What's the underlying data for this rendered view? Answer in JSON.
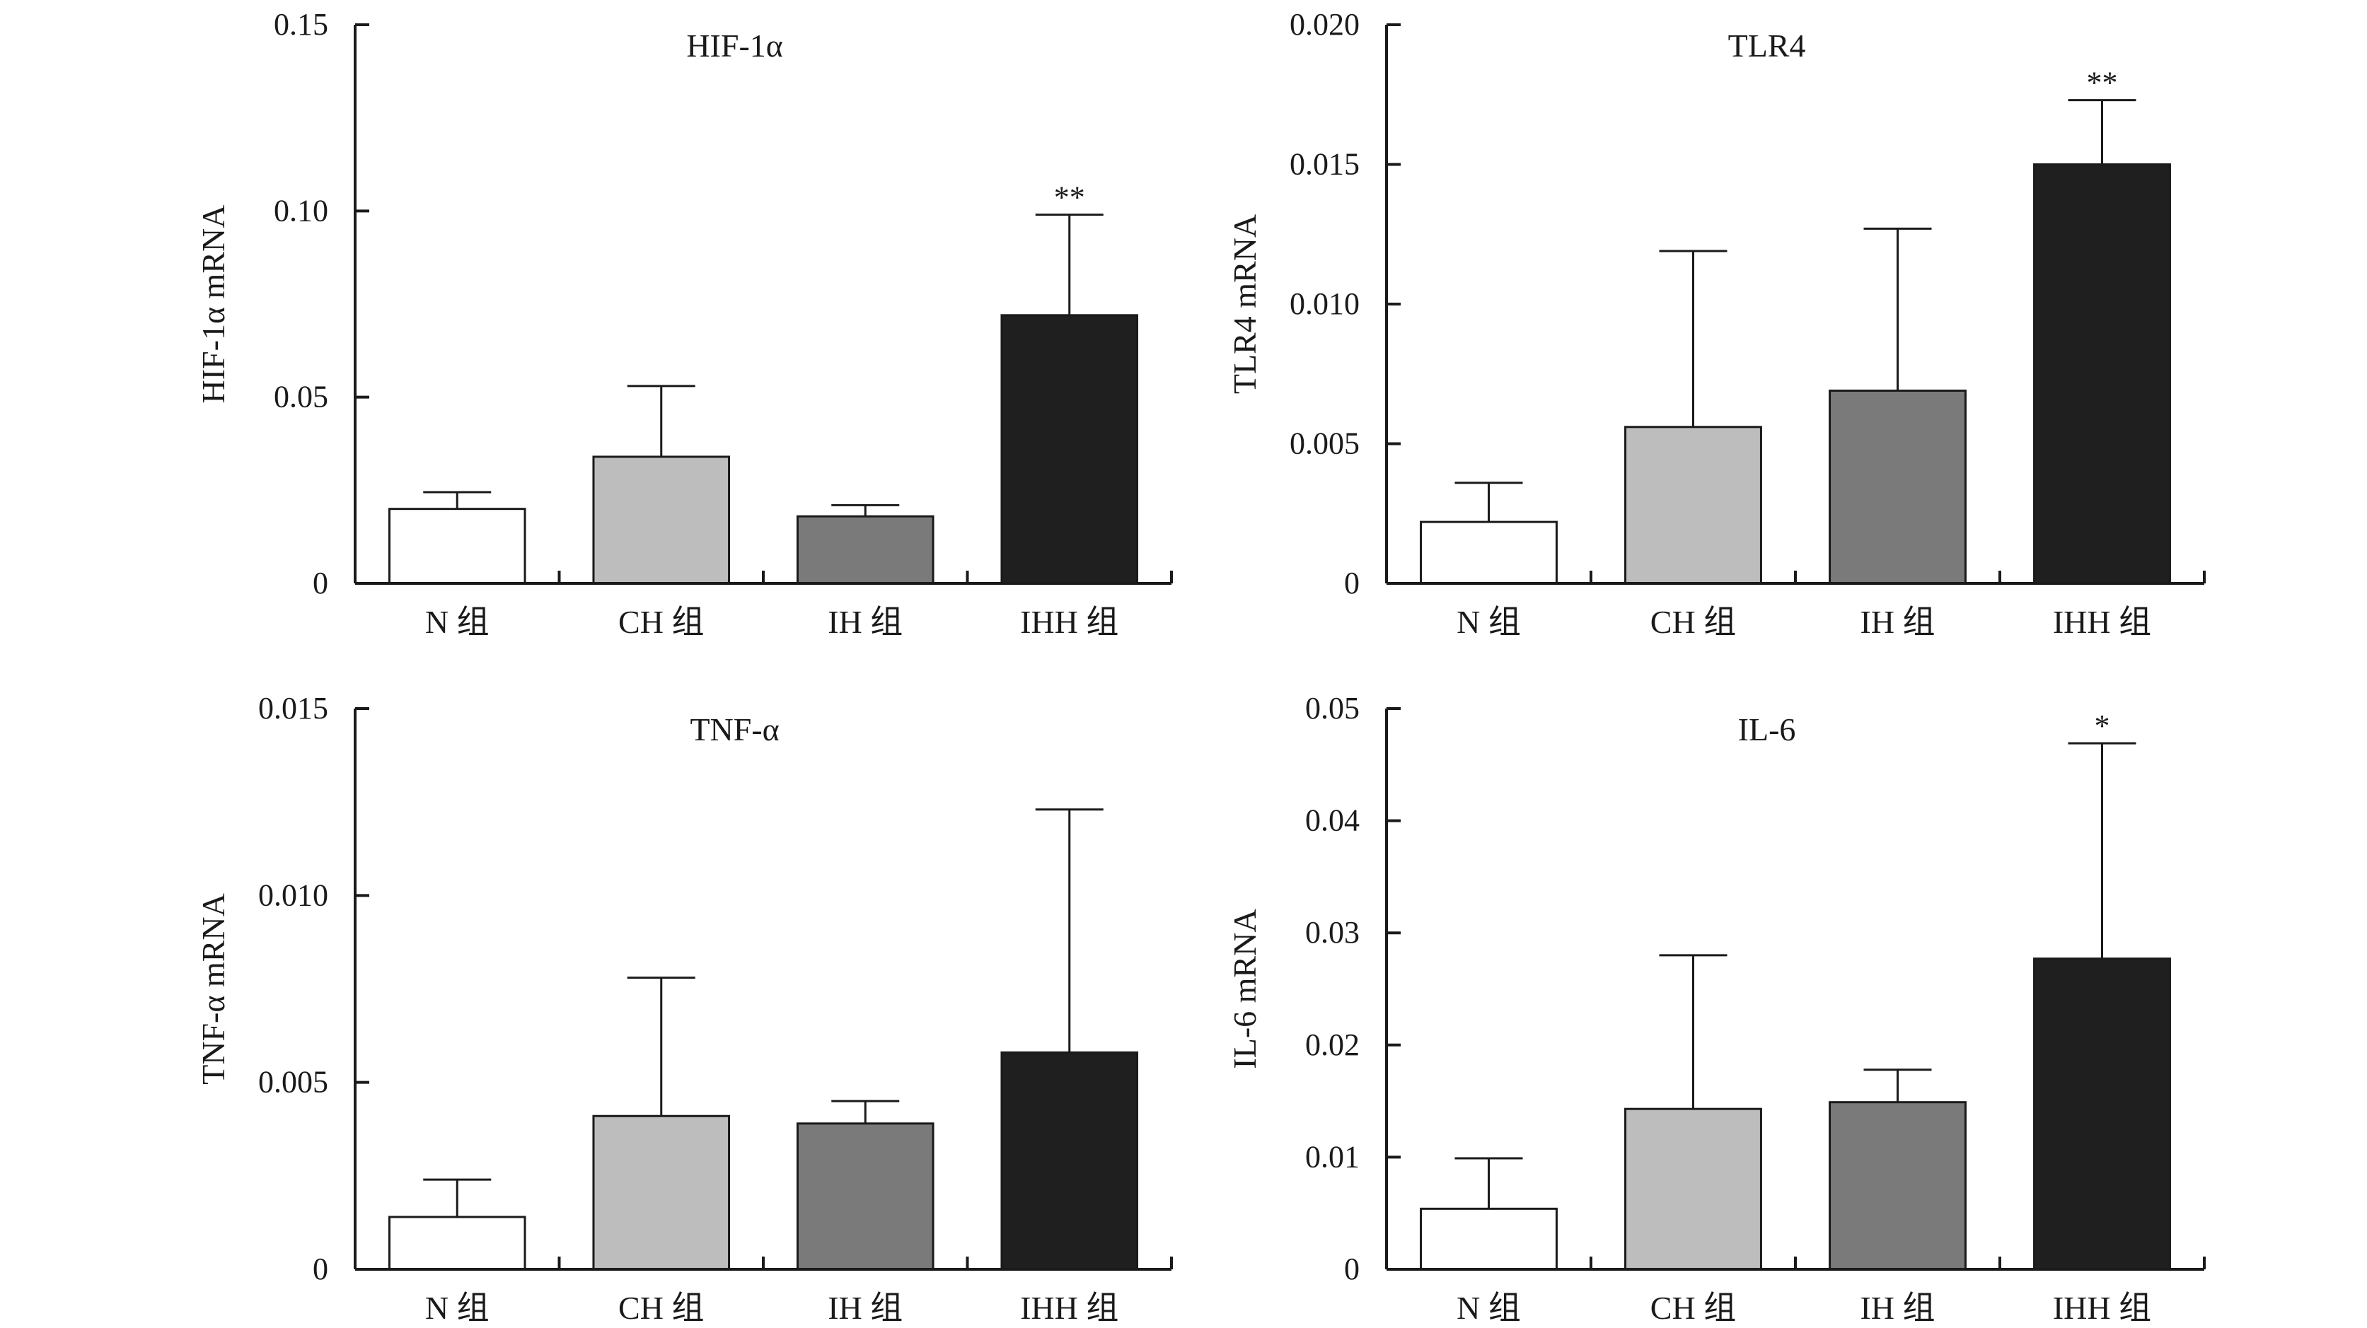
{
  "colors": {
    "N 组": "#ffffff",
    "CH 组": "#bdbdbd",
    "IH 组": "#7a7a7a",
    "IHH 组": "#1f1f1f",
    "axis": "#1a1a1a"
  },
  "chart_data": [
    {
      "type": "bar",
      "title": "HIF-1α",
      "ylabel": "HIF-1α mRNA",
      "xlabel": "",
      "categories": [
        "N 组",
        "CH 组",
        "IH 组",
        "IHH 组"
      ],
      "values": [
        0.02,
        0.034,
        0.018,
        0.072
      ],
      "errors": [
        0.0045,
        0.019,
        0.003,
        0.027
      ],
      "significance": [
        "",
        "",
        "",
        "**"
      ],
      "ylim": [
        0,
        0.15
      ],
      "yticks": [
        0,
        0.05,
        0.1,
        0.15
      ],
      "ytick_labels": [
        "0",
        "0.05",
        "0.10",
        "0.15"
      ],
      "grid": false,
      "legend": "none"
    },
    {
      "type": "bar",
      "title": "TLR4",
      "ylabel": "TLR4 mRNA",
      "xlabel": "",
      "categories": [
        "N 组",
        "CH 组",
        "IH 组",
        "IHH 组"
      ],
      "values": [
        0.0022,
        0.0056,
        0.0069,
        0.015
      ],
      "errors": [
        0.0014,
        0.0063,
        0.0058,
        0.0023
      ],
      "significance": [
        "",
        "",
        "",
        "**"
      ],
      "ylim": [
        0,
        0.02
      ],
      "yticks": [
        0,
        0.005,
        0.01,
        0.015,
        0.02
      ],
      "ytick_labels": [
        "0",
        "0.005",
        "0.010",
        "0.015",
        "0.020"
      ],
      "grid": false,
      "legend": "none"
    },
    {
      "type": "bar",
      "title": "TNF-α",
      "ylabel": "TNF-α mRNA",
      "xlabel": "",
      "categories": [
        "N 组",
        "CH 组",
        "IH 组",
        "IHH 组"
      ],
      "values": [
        0.0014,
        0.0041,
        0.0039,
        0.0058
      ],
      "errors": [
        0.001,
        0.0037,
        0.0006,
        0.0065
      ],
      "significance": [
        "",
        "",
        "",
        ""
      ],
      "ylim": [
        0,
        0.015
      ],
      "yticks": [
        0,
        0.005,
        0.01,
        0.015
      ],
      "ytick_labels": [
        "0",
        "0.005",
        "0.010",
        "0.015"
      ],
      "grid": false,
      "legend": "none"
    },
    {
      "type": "bar",
      "title": "IL-6",
      "ylabel": "IL-6 mRNA",
      "xlabel": "",
      "categories": [
        "N 组",
        "CH 组",
        "IH 组",
        "IHH 组"
      ],
      "values": [
        0.0054,
        0.0143,
        0.0149,
        0.0277
      ],
      "errors": [
        0.0045,
        0.0137,
        0.0029,
        0.0192
      ],
      "significance": [
        "",
        "",
        "",
        "*"
      ],
      "ylim": [
        0,
        0.05
      ],
      "yticks": [
        0,
        0.01,
        0.02,
        0.03,
        0.04,
        0.05
      ],
      "ytick_labels": [
        "0",
        "0.01",
        "0.02",
        "0.03",
        "0.04",
        "0.05"
      ],
      "grid": false,
      "legend": "none"
    }
  ]
}
